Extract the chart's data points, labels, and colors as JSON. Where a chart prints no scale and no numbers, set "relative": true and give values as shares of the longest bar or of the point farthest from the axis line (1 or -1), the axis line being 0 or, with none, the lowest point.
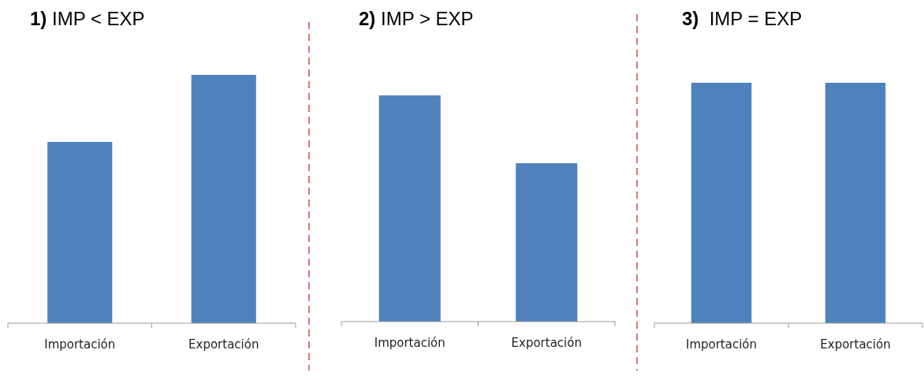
{
  "chart_data": [
    {
      "type": "bar",
      "title": "1) IMP < EXP",
      "categories": [
        "Importación",
        "Exportación"
      ],
      "values": [
        0.73,
        1
      ],
      "color": "#4f81bd",
      "relative": true
    },
    {
      "type": "bar",
      "title": "2) IMP > EXP",
      "categories": [
        "Importación",
        "Exportación"
      ],
      "values": [
        1,
        0.7
      ],
      "color": "#4f81bd",
      "relative": true
    },
    {
      "type": "bar",
      "title": "3)  IMP = EXP",
      "categories": [
        "Importación",
        "Exportación"
      ],
      "values": [
        1,
        1
      ],
      "color": "#4f81bd",
      "relative": true
    }
  ]
}
